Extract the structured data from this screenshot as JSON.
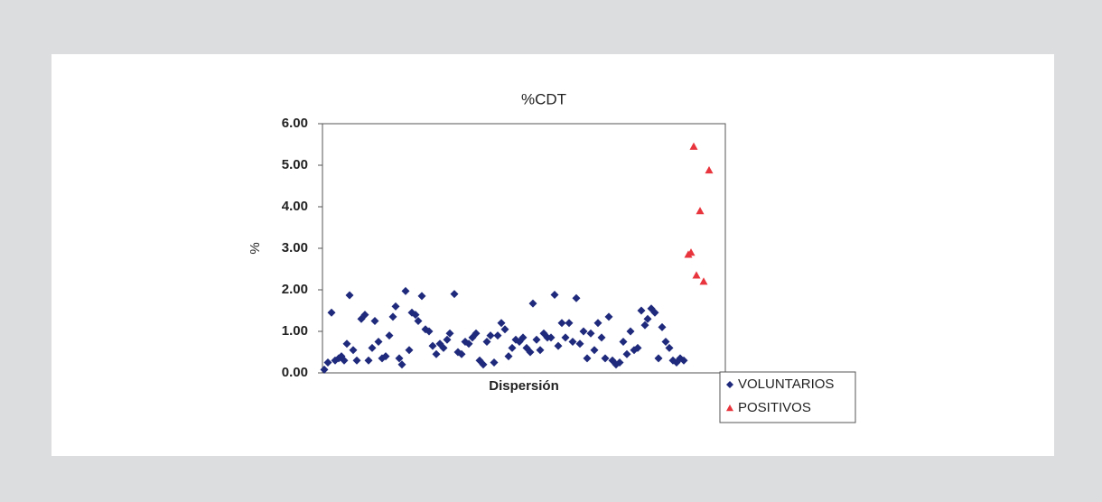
{
  "chart_data": {
    "type": "scatter",
    "title": "%CDT",
    "xlabel": "Dispersión",
    "ylabel": "%",
    "xlim": [
      0,
      446
    ],
    "ylim": [
      0,
      6
    ],
    "yticks": [
      {
        "value": 0,
        "label": "0.00"
      },
      {
        "value": 1,
        "label": "1.00"
      },
      {
        "value": 2,
        "label": "2.00"
      },
      {
        "value": 3,
        "label": "3.00"
      },
      {
        "value": 4,
        "label": "4.00"
      },
      {
        "value": 5,
        "label": "5.00"
      },
      {
        "value": 6,
        "label": "6.00"
      }
    ],
    "legend": "bottom-right",
    "series": [
      {
        "name": "VOLUNTARIOS",
        "color": "#1f2a7c",
        "marker": "diamond",
        "x": [
          2,
          6,
          10,
          14,
          18,
          21,
          24,
          27,
          30,
          34,
          38,
          43,
          47,
          51,
          55,
          58,
          62,
          66,
          70,
          74,
          78,
          81,
          85,
          88,
          92,
          96,
          99,
          103,
          106,
          110,
          114,
          118,
          122,
          126,
          130,
          134,
          138,
          141,
          146,
          150,
          154,
          158,
          162,
          166,
          170,
          174,
          178,
          182,
          186,
          190,
          194,
          198,
          202,
          206,
          210,
          214,
          218,
          222,
          226,
          230,
          233,
          237,
          241,
          245,
          249,
          253,
          257,
          261,
          265,
          269,
          273,
          277,
          281,
          285,
          289,
          293,
          297,
          301,
          305,
          309,
          313,
          317,
          321,
          325,
          329,
          333,
          337,
          341,
          345,
          349,
          353,
          357,
          360,
          364,
          368,
          372,
          376,
          380,
          384,
          388,
          392,
          396,
          400
        ],
        "values": [
          0.08,
          0.25,
          1.45,
          0.3,
          0.35,
          0.4,
          0.3,
          0.7,
          1.87,
          0.55,
          0.3,
          1.3,
          1.4,
          0.3,
          0.6,
          1.25,
          0.75,
          0.35,
          0.4,
          0.9,
          1.35,
          1.6,
          0.35,
          0.2,
          1.97,
          0.55,
          1.45,
          1.4,
          1.25,
          1.85,
          1.05,
          1.0,
          0.65,
          0.45,
          0.7,
          0.6,
          0.8,
          0.95,
          1.9,
          0.5,
          0.45,
          0.75,
          0.7,
          0.85,
          0.95,
          0.3,
          0.2,
          0.75,
          0.9,
          0.25,
          0.9,
          1.2,
          1.05,
          0.4,
          0.6,
          0.8,
          0.75,
          0.85,
          0.6,
          0.5,
          1.67,
          0.8,
          0.55,
          0.95,
          0.85,
          0.85,
          1.88,
          0.65,
          1.2,
          0.85,
          1.2,
          0.75,
          1.8,
          0.7,
          1.0,
          0.35,
          0.95,
          0.55,
          1.2,
          0.85,
          0.35,
          1.35,
          0.3,
          0.2,
          0.25,
          0.75,
          0.45,
          1.0,
          0.55,
          0.6,
          1.5,
          1.15,
          1.3,
          1.55,
          1.45,
          0.35,
          1.1,
          0.75,
          0.6,
          0.3,
          0.25,
          0.35,
          0.3
        ]
      },
      {
        "name": "POSITIVOS",
        "color": "#e8343c",
        "marker": "triangle",
        "x": [
          405,
          408,
          411,
          414,
          418,
          422,
          428
        ],
        "values": [
          2.85,
          2.9,
          5.45,
          2.35,
          3.9,
          2.2,
          4.88
        ]
      }
    ]
  }
}
